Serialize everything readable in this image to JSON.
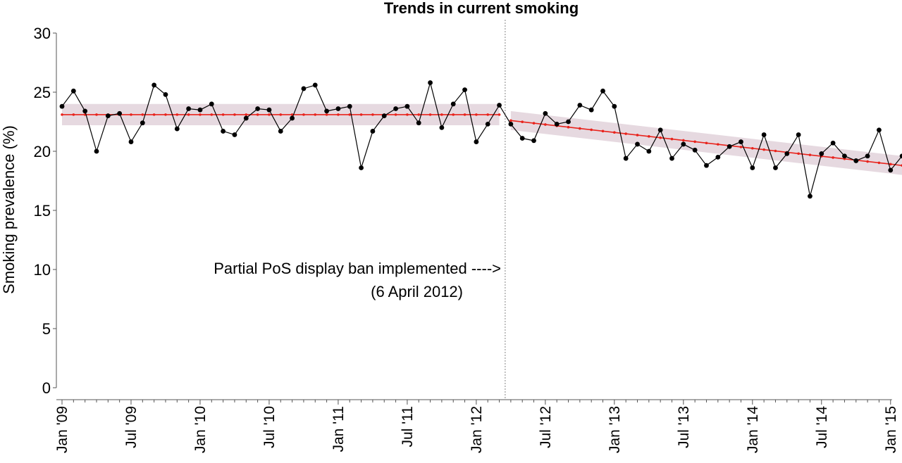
{
  "chart_data": {
    "type": "line",
    "title": "Trends in current smoking",
    "ylabel": "Smoking prevalence (%)",
    "xlabel": "",
    "ylim": [
      0,
      30
    ],
    "yticks": [
      0,
      5,
      10,
      15,
      20,
      25,
      30
    ],
    "grid": false,
    "legend": "none",
    "x_labels": [
      "Jan '09",
      "Jul '09",
      "Jan '10",
      "Jul '10",
      "Jan '11",
      "Jul '11",
      "Jan '12",
      "Jul '12",
      "Jan '13",
      "Jul '13",
      "Jan '14",
      "Jul '14",
      "Jan '15"
    ],
    "intervention_month": "2012-04",
    "annotation": {
      "line1": "Partial PoS display ban implemented ---->",
      "line2": "(6 April 2012)"
    },
    "observed": {
      "start": "2009-01",
      "values": [
        23.8,
        25.1,
        23.4,
        20.0,
        23.0,
        23.2,
        20.8,
        22.4,
        25.6,
        24.8,
        21.9,
        23.6,
        23.5,
        24.0,
        21.7,
        21.4,
        22.8,
        23.6,
        23.5,
        21.7,
        22.8,
        25.3,
        25.6,
        23.4,
        23.6,
        23.8,
        18.6,
        21.7,
        23.0,
        23.6,
        23.8,
        22.4,
        25.8,
        22.0,
        24.0,
        25.2,
        20.8,
        22.3,
        23.9,
        22.3,
        21.1,
        20.9,
        23.2,
        22.3,
        22.5,
        23.9,
        23.5,
        25.1,
        23.8,
        19.4,
        20.6,
        20.0,
        21.8,
        19.4,
        20.6,
        20.1,
        18.8,
        19.5,
        20.4,
        20.8,
        18.6,
        21.4,
        18.6,
        19.8,
        21.4,
        16.2,
        19.8,
        20.7,
        19.6,
        19.2,
        19.6,
        21.8,
        18.4,
        19.6
      ],
      "color": "#000000"
    },
    "fitted": [
      {
        "name": "",
        "start": "2009-01",
        "end": "2012-03",
        "from": 23.1,
        "to": 23.1,
        "ci": 0.9
      },
      {
        "name": "",
        "start": "2012-04",
        "end": "2015-02",
        "from": 22.6,
        "to": 18.8,
        "ci": 0.8
      }
    ],
    "fit_color": "#e8231c",
    "ci_color": "#e6d9e0"
  }
}
